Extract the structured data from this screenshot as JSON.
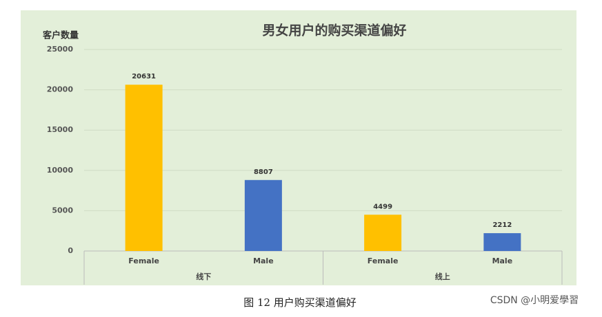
{
  "chart_data": {
    "type": "bar",
    "title": "男女用户的购买渠道偏好",
    "y_label": "客户数量",
    "categories": [
      "Female",
      "Male",
      "Female",
      "Male"
    ],
    "groups": [
      "线下",
      "线上"
    ],
    "values": [
      20631,
      8807,
      4499,
      2212
    ],
    "colors": [
      "#FFC000",
      "#4472C4",
      "#FFC000",
      "#4472C4"
    ],
    "ylim": [
      0,
      25000
    ],
    "yticks": [
      0,
      5000,
      10000,
      15000,
      20000,
      25000
    ],
    "grid": true
  },
  "caption": "图 12 用户购买渠道偏好",
  "watermark": "CSDN @小明爱學習"
}
